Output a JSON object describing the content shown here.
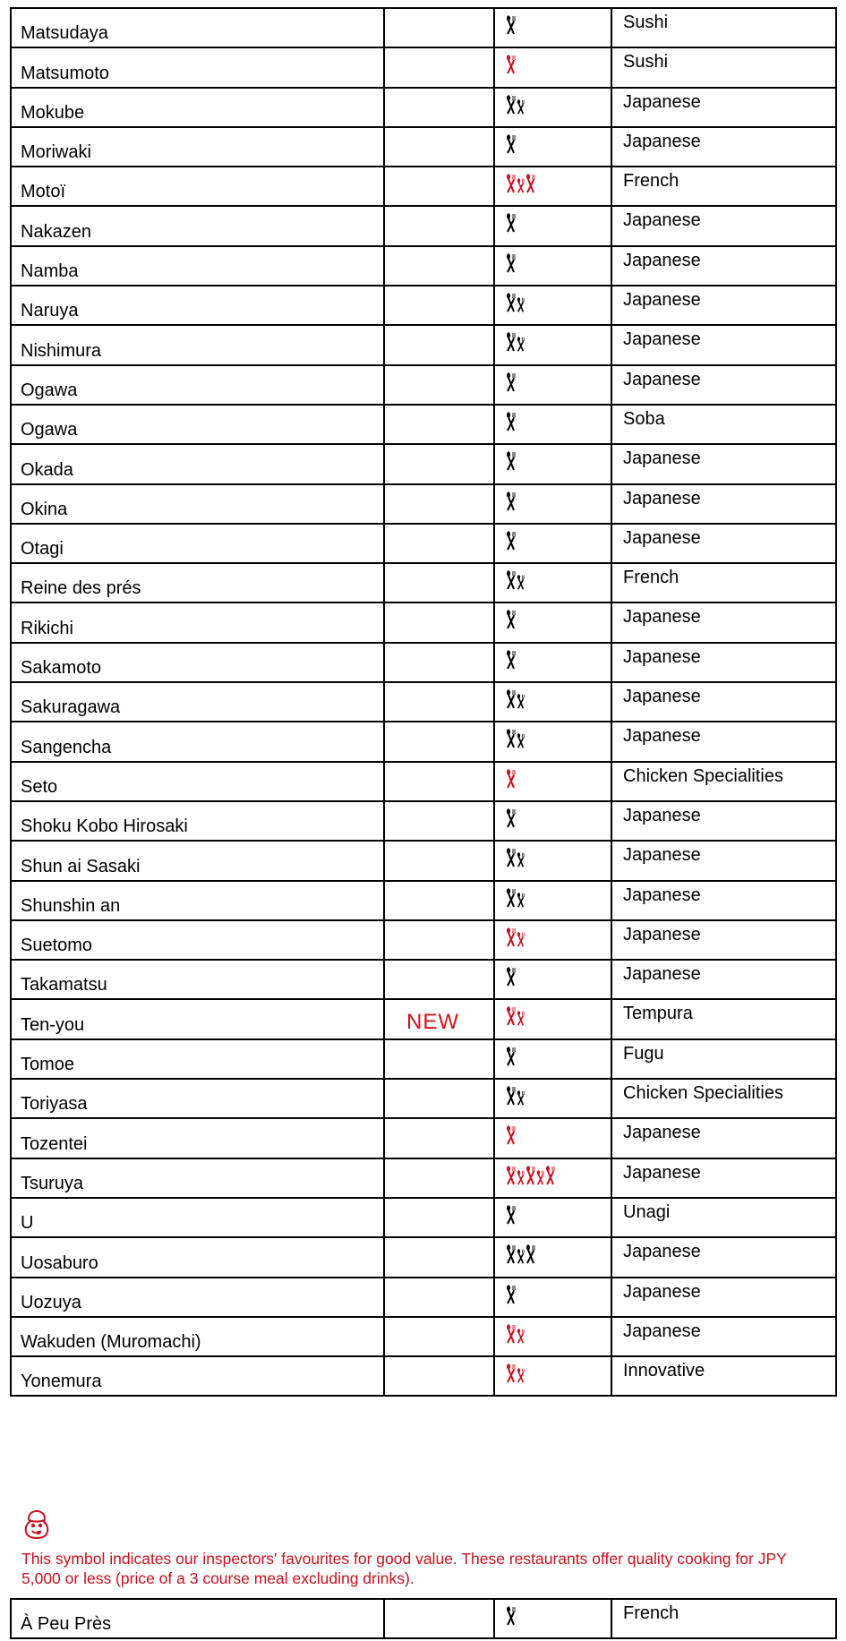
{
  "colors": {
    "black_cover": "#000000",
    "red_cover": "#c8101e",
    "accent": "#c8101e"
  },
  "restaurants": [
    {
      "name": "Matsudaya",
      "tag": "",
      "covers": 1,
      "cover_color": "black",
      "cuisine": "Sushi"
    },
    {
      "name": "Matsumoto",
      "tag": "",
      "covers": 1,
      "cover_color": "red",
      "cuisine": "Sushi"
    },
    {
      "name": "Mokube",
      "tag": "",
      "covers": 2,
      "cover_color": "black",
      "cuisine": "Japanese"
    },
    {
      "name": "Moriwaki",
      "tag": "",
      "covers": 1,
      "cover_color": "black",
      "cuisine": "Japanese"
    },
    {
      "name": "Motoï",
      "tag": "",
      "covers": 3,
      "cover_color": "red",
      "cuisine": "French"
    },
    {
      "name": "Nakazen",
      "tag": "",
      "covers": 1,
      "cover_color": "black",
      "cuisine": "Japanese"
    },
    {
      "name": "Namba",
      "tag": "",
      "covers": 1,
      "cover_color": "black",
      "cuisine": "Japanese"
    },
    {
      "name": "Naruya",
      "tag": "",
      "covers": 2,
      "cover_color": "black",
      "cuisine": "Japanese"
    },
    {
      "name": "Nishimura",
      "tag": "",
      "covers": 2,
      "cover_color": "black",
      "cuisine": "Japanese"
    },
    {
      "name": "Ogawa",
      "tag": "",
      "covers": 1,
      "cover_color": "black",
      "cuisine": "Japanese"
    },
    {
      "name": "Ogawa",
      "tag": "",
      "covers": 1,
      "cover_color": "black",
      "cuisine": "Soba"
    },
    {
      "name": "Okada",
      "tag": "",
      "covers": 1,
      "cover_color": "black",
      "cuisine": "Japanese"
    },
    {
      "name": "Okina",
      "tag": "",
      "covers": 1,
      "cover_color": "black",
      "cuisine": "Japanese"
    },
    {
      "name": "Otagi",
      "tag": "",
      "covers": 1,
      "cover_color": "black",
      "cuisine": "Japanese"
    },
    {
      "name": "Reine des prés",
      "tag": "",
      "covers": 2,
      "cover_color": "black",
      "cuisine": "French"
    },
    {
      "name": "Rikichi",
      "tag": "",
      "covers": 1,
      "cover_color": "black",
      "cuisine": "Japanese"
    },
    {
      "name": "Sakamoto",
      "tag": "",
      "covers": 1,
      "cover_color": "black",
      "cuisine": "Japanese"
    },
    {
      "name": "Sakuragawa",
      "tag": "",
      "covers": 2,
      "cover_color": "black",
      "cuisine": "Japanese"
    },
    {
      "name": "Sangencha",
      "tag": "",
      "covers": 2,
      "cover_color": "black",
      "cuisine": "Japanese"
    },
    {
      "name": "Seto",
      "tag": "",
      "covers": 1,
      "cover_color": "red",
      "cuisine": "Chicken Specialities"
    },
    {
      "name": "Shoku Kobo Hirosaki",
      "tag": "",
      "covers": 1,
      "cover_color": "black",
      "cuisine": "Japanese"
    },
    {
      "name": "Shun ai Sasaki",
      "tag": "",
      "covers": 2,
      "cover_color": "black",
      "cuisine": "Japanese"
    },
    {
      "name": "Shunshin an",
      "tag": "",
      "covers": 2,
      "cover_color": "black",
      "cuisine": "Japanese"
    },
    {
      "name": "Suetomo",
      "tag": "",
      "covers": 2,
      "cover_color": "red",
      "cuisine": "Japanese"
    },
    {
      "name": "Takamatsu",
      "tag": "",
      "covers": 1,
      "cover_color": "black",
      "cuisine": "Japanese"
    },
    {
      "name": "Ten-you",
      "tag": "NEW",
      "covers": 2,
      "cover_color": "red",
      "cuisine": "Tempura"
    },
    {
      "name": "Tomoe",
      "tag": "",
      "covers": 1,
      "cover_color": "black",
      "cuisine": "Fugu"
    },
    {
      "name": "Toriyasa",
      "tag": "",
      "covers": 2,
      "cover_color": "black",
      "cuisine": "Chicken Specialities"
    },
    {
      "name": "Tozentei",
      "tag": "",
      "covers": 1,
      "cover_color": "red",
      "cuisine": "Japanese"
    },
    {
      "name": "Tsuruya",
      "tag": "",
      "covers": 5,
      "cover_color": "red",
      "cuisine": "Japanese"
    },
    {
      "name": "U",
      "tag": "",
      "covers": 1,
      "cover_color": "black",
      "cuisine": "Unagi"
    },
    {
      "name": "Uosaburo",
      "tag": "",
      "covers": 3,
      "cover_color": "black",
      "cuisine": "Japanese"
    },
    {
      "name": "Uozuya",
      "tag": "",
      "covers": 1,
      "cover_color": "black",
      "cuisine": "Japanese"
    },
    {
      "name": "Wakuden (Muromachi)",
      "tag": "",
      "covers": 2,
      "cover_color": "red",
      "cuisine": "Japanese"
    },
    {
      "name": "Yonemura",
      "tag": "",
      "covers": 2,
      "cover_color": "red",
      "cuisine": "Innovative"
    }
  ],
  "legend": {
    "icon": "bib-gourmand-icon",
    "text": "This symbol indicates our inspectors' favourites for good value. These restaurants offer quality cooking for JPY 5,000 or less (price of a 3 course meal excluding drinks)."
  },
  "value_restaurants": [
    {
      "name": "À Peu Près",
      "tag": "",
      "covers": 1,
      "cover_color": "black",
      "cuisine": "French"
    }
  ]
}
